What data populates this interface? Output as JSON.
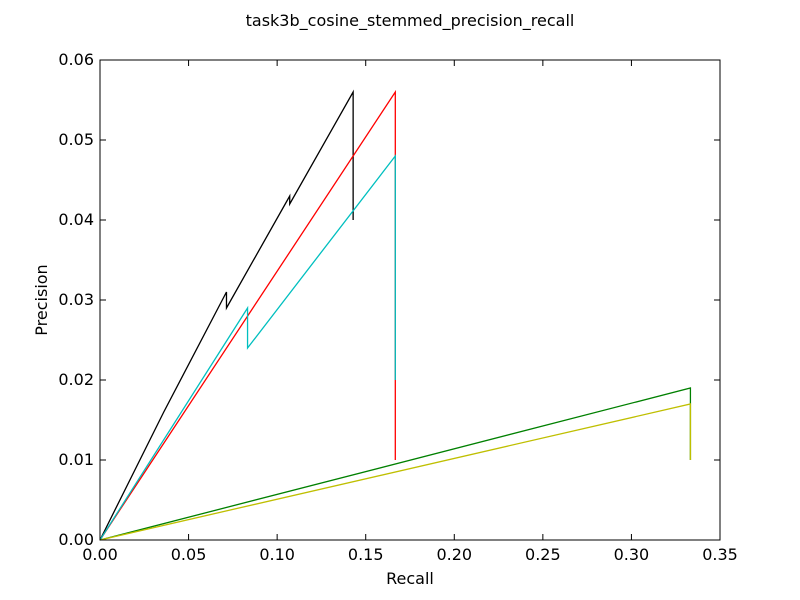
{
  "chart_data": {
    "type": "line",
    "title": "task3b_cosine_stemmed_precision_recall",
    "xlabel": "Recall",
    "ylabel": "Precision",
    "xlim": [
      0.0,
      0.35
    ],
    "ylim": [
      0.0,
      0.06
    ],
    "xticks": [
      0.0,
      0.05,
      0.1,
      0.15,
      0.2,
      0.25,
      0.3,
      0.35
    ],
    "yticks": [
      0.0,
      0.01,
      0.02,
      0.03,
      0.04,
      0.05,
      0.06
    ],
    "xtick_labels": [
      "0.00",
      "0.05",
      "0.10",
      "0.15",
      "0.20",
      "0.25",
      "0.30",
      "0.35"
    ],
    "ytick_labels": [
      "0.00",
      "0.01",
      "0.02",
      "0.03",
      "0.04",
      "0.05",
      "0.06"
    ],
    "grid": false,
    "series": [
      {
        "color": "#000000",
        "points": [
          [
            0.0,
            0.0
          ],
          [
            0.036,
            0.016
          ],
          [
            0.0714,
            0.031
          ],
          [
            0.0714,
            0.029
          ],
          [
            0.1071,
            0.043
          ],
          [
            0.1071,
            0.042
          ],
          [
            0.1429,
            0.056
          ],
          [
            0.1429,
            0.04
          ]
        ]
      },
      {
        "color": "#ff0000",
        "points": [
          [
            0.0,
            0.0
          ],
          [
            0.1667,
            0.056
          ],
          [
            0.1667,
            0.01
          ]
        ]
      },
      {
        "color": "#00bfbf",
        "points": [
          [
            0.0,
            0.0
          ],
          [
            0.0833,
            0.029
          ],
          [
            0.0833,
            0.024
          ],
          [
            0.1667,
            0.048
          ],
          [
            0.1667,
            0.02
          ]
        ]
      },
      {
        "color": "#008000",
        "points": [
          [
            0.0,
            0.0
          ],
          [
            0.3333,
            0.019
          ],
          [
            0.3333,
            0.01
          ]
        ]
      },
      {
        "color": "#bfbf00",
        "points": [
          [
            0.0,
            0.0
          ],
          [
            0.3333,
            0.017
          ],
          [
            0.3333,
            0.01
          ]
        ]
      }
    ]
  }
}
